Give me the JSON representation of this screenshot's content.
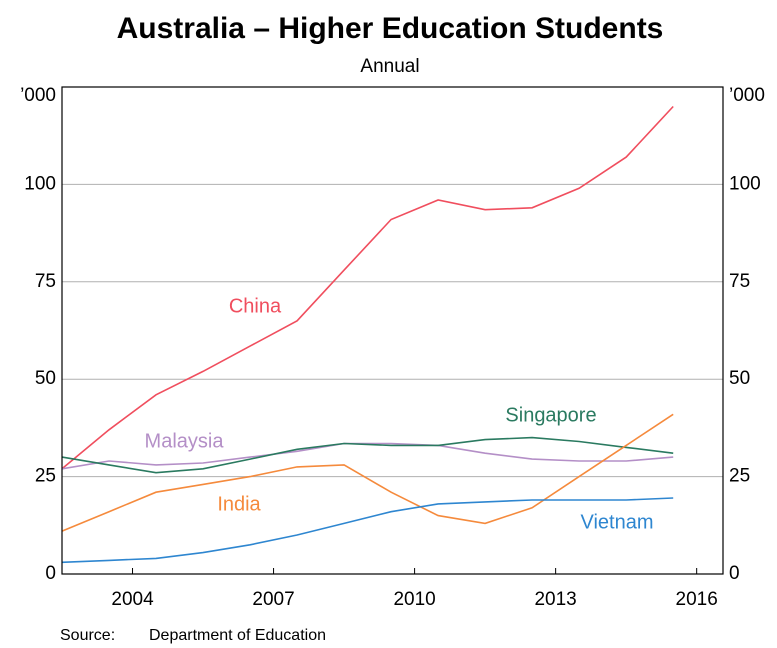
{
  "chart_data": {
    "type": "line",
    "title": "Australia – Higher Education Students",
    "subtitle": "Annual",
    "y_unit": "’000",
    "source_label": "Source:",
    "source": "Department of Education",
    "x": [
      2002.5,
      2003.5,
      2004.5,
      2005.5,
      2006.5,
      2007.5,
      2008.5,
      2009.5,
      2010.5,
      2011.5,
      2012.5,
      2013.5,
      2014.5,
      2015.5
    ],
    "xlim": [
      2002.5,
      2016.56
    ],
    "xticks": [
      2004,
      2007,
      2010,
      2013,
      2016
    ],
    "ylim": [
      0,
      125
    ],
    "yticks": [
      0,
      25,
      50,
      75,
      100
    ],
    "grid": true,
    "series": [
      {
        "name": "China",
        "color": "#f04e5e",
        "values": [
          27,
          37,
          46,
          52,
          58.5,
          65,
          78,
          91,
          96,
          93.5,
          94,
          99,
          107,
          120
        ]
      },
      {
        "name": "Malaysia",
        "color": "#b48fc7",
        "values": [
          27,
          29,
          28,
          28.5,
          30,
          31.5,
          33.5,
          33.5,
          33,
          31,
          29.5,
          29,
          29,
          30
        ]
      },
      {
        "name": "Singapore",
        "color": "#2a7a60",
        "values": [
          30,
          28,
          26,
          27,
          29.5,
          32,
          33.5,
          33,
          33,
          34.5,
          35,
          34,
          32.5,
          31
        ]
      },
      {
        "name": "India",
        "color": "#f58a3c",
        "values": [
          11,
          16,
          21,
          23,
          25,
          27.5,
          28,
          21,
          15,
          13,
          17,
          25,
          33,
          41
        ]
      },
      {
        "name": "Vietnam",
        "color": "#2e86d0",
        "values": [
          3,
          3.5,
          4,
          5.5,
          7.5,
          10,
          13,
          16,
          18,
          18.5,
          19,
          19,
          19,
          19.5
        ]
      }
    ]
  }
}
